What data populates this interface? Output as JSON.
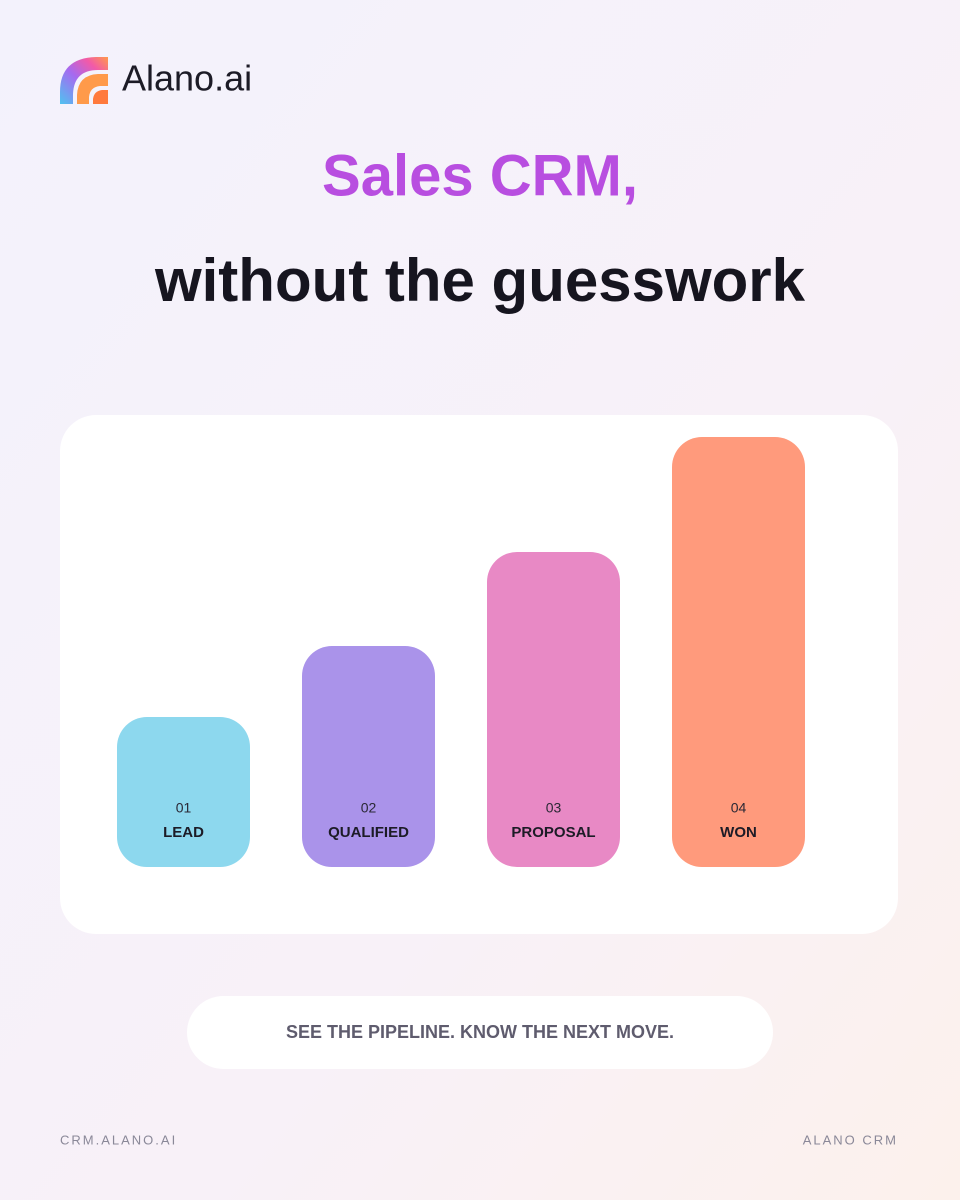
{
  "header": {
    "brand": "Alano.ai"
  },
  "headline": {
    "line1": "Sales CRM,",
    "line2": "without the guesswork"
  },
  "stages": [
    {
      "number": "01",
      "label": "LEAD"
    },
    {
      "number": "02",
      "label": "QUALIFIED"
    },
    {
      "number": "03",
      "label": "PROPOSAL"
    },
    {
      "number": "04",
      "label": "WON"
    }
  ],
  "tagline": "SEE THE PIPELINE. KNOW THE NEXT MOVE.",
  "footer": {
    "left": "CRM.ALANO.AI",
    "right": "ALANO CRM"
  }
}
